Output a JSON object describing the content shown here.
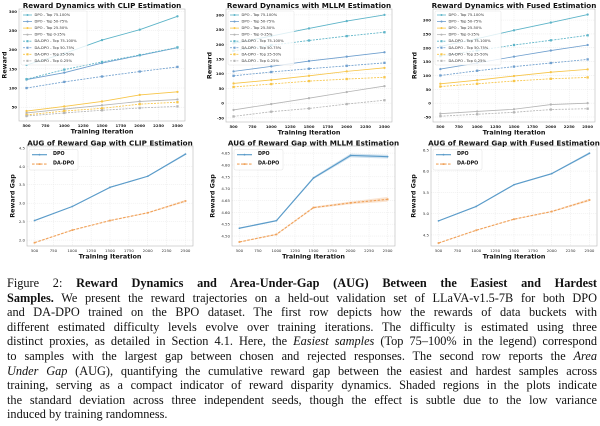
{
  "figure": {
    "caption": {
      "lines": [
        [
          "Figure 2: ",
          "Reward Dynamics and Area-Under-Gap (AUG) Between the Easiest and Hardest"
        ],
        [
          "Samples.",
          " We present the reward trajectories on a held-out validation set of LLaVA-v1.5-7B for both DPO"
        ],
        [
          "and DA-DPO trained on the BPO dataset. The first row depicts how the rewards of data buckets with"
        ],
        [
          "different estimated difficulty levels evolve over training iterations. The difficulty is estimated using three"
        ],
        [
          "distinct proxies, as detailed in Section 4.1. Here, the ",
          "Easiest samples",
          " (Top 75–100% in the legend) correspond"
        ],
        [
          "to samples with the largest gap between chosen and rejected responses. The second row reports the ",
          "Area"
        ],
        [
          "Under Gap",
          " (AUG), quantifying the cumulative reward gap between the easiest and hardest samples across"
        ],
        [
          "training, serving as a compact indicator of reward disparity dynamics. Shaded regions in the plots indicate"
        ],
        [
          "the standard deviation across three independent seeds, though the effect is subtle due to the low variance"
        ],
        [
          "induced by training randomness."
        ]
      ]
    }
  },
  "chart_data": [
    {
      "type": "line",
      "title": "Reward Dynamics with CLIP Estimation",
      "xlabel": "Training Iteration",
      "ylabel": "Reward",
      "x": [
        500,
        1000,
        1500,
        2000,
        2500
      ],
      "xticks": [
        500,
        750,
        1000,
        1250,
        1500,
        1750,
        2000,
        2250,
        2500
      ],
      "xticklabels": [
        "500",
        "750",
        "1000",
        "1250",
        "1500",
        "1750",
        "2000",
        "2250",
        "2500"
      ],
      "xlim": [
        400,
        2600
      ],
      "yticks": [
        50,
        100,
        150,
        200,
        250,
        300
      ],
      "yticklabels": [
        "50",
        "100",
        "150",
        "200",
        "250",
        "300"
      ],
      "ylim": [
        14,
        306
      ],
      "grid": true,
      "legend": "top-left",
      "series": [
        {
          "name": "DPO - Top 75-100%",
          "color": "#5db4c8",
          "linestyle": "solid",
          "marker": "circle",
          "values": [
            160,
            190,
            225,
            252,
            287
          ]
        },
        {
          "name": "DPO - Top 50-75%",
          "color": "#6f9fce",
          "linestyle": "solid",
          "marker": "circle",
          "values": [
            122,
            140,
            165,
            185,
            205
          ]
        },
        {
          "name": "DPO - Top 25-50%",
          "color": "#f7c548",
          "linestyle": "solid",
          "marker": "circle",
          "values": [
            40,
            52,
            65,
            82,
            90
          ]
        },
        {
          "name": "DPO - Top 0-25%",
          "color": "#b5b5b5",
          "linestyle": "solid",
          "marker": "circle",
          "values": [
            35,
            45,
            55,
            65,
            70
          ]
        },
        {
          "name": "DA-DPO - Top 75-100%",
          "color": "#5db4c8",
          "linestyle": "dashed",
          "marker": "square",
          "values": [
            123,
            148,
            168,
            186,
            206
          ]
        },
        {
          "name": "DA-DPO - Top 50-75%",
          "color": "#6f9fce",
          "linestyle": "dashed",
          "marker": "square",
          "values": [
            100,
            116,
            130,
            143,
            155
          ]
        },
        {
          "name": "DA-DPO - Top 25-50%",
          "color": "#f7c548",
          "linestyle": "dashed",
          "marker": "square",
          "values": [
            30,
            40,
            47,
            58,
            63
          ]
        },
        {
          "name": "DA-DPO - Top 0-25%",
          "color": "#b5b5b5",
          "linestyle": "dashed",
          "marker": "square",
          "values": [
            27,
            35,
            42,
            48,
            52
          ]
        }
      ]
    },
    {
      "type": "line",
      "title": "Reward Dynamics with MLLM Estimation",
      "xlabel": "Training Iteration",
      "ylabel": "Reward",
      "x": [
        500,
        1000,
        1500,
        2000,
        2500
      ],
      "xticks": [
        500,
        750,
        1000,
        1250,
        1500,
        1750,
        2000,
        2250,
        2500
      ],
      "xticklabels": [
        "500",
        "750",
        "1000",
        "1250",
        "1500",
        "1750",
        "2000",
        "2250",
        "2500"
      ],
      "xlim": [
        400,
        2600
      ],
      "yticks": [
        -50,
        0,
        50,
        100,
        150,
        200,
        250,
        300
      ],
      "yticklabels": [
        "-50",
        "0",
        "50",
        "100",
        "150",
        "200",
        "250",
        "300"
      ],
      "ylim": [
        -64,
        320
      ],
      "grid": true,
      "legend": "top-left",
      "series": [
        {
          "name": "DPO - Top 75-100%",
          "color": "#5db4c8",
          "linestyle": "solid",
          "marker": "circle",
          "values": [
            203,
            228,
            254,
            279,
            300
          ]
        },
        {
          "name": "DPO - Top 50-75%",
          "color": "#6f9fce",
          "linestyle": "solid",
          "marker": "circle",
          "values": [
            108,
            125,
            143,
            158,
            173
          ]
        },
        {
          "name": "DPO - Top 25-50%",
          "color": "#f7c548",
          "linestyle": "solid",
          "marker": "circle",
          "values": [
            67,
            79,
            93,
            108,
            120
          ]
        },
        {
          "name": "DPO - Top 0-25%",
          "color": "#b5b5b5",
          "linestyle": "solid",
          "marker": "circle",
          "values": [
            -23,
            -3,
            17,
            38,
            58
          ]
        },
        {
          "name": "DA-DPO - Top 75-100%",
          "color": "#5db4c8",
          "linestyle": "dashed",
          "marker": "square",
          "values": [
            178,
            197,
            213,
            228,
            241
          ]
        },
        {
          "name": "DA-DPO - Top 50-75%",
          "color": "#6f9fce",
          "linestyle": "dashed",
          "marker": "square",
          "values": [
            93,
            106,
            117,
            127,
            137
          ]
        },
        {
          "name": "DA-DPO - Top 25-50%",
          "color": "#f7c548",
          "linestyle": "dashed",
          "marker": "square",
          "values": [
            55,
            65,
            75,
            82,
            88
          ]
        },
        {
          "name": "DA-DPO - Top 0-25%",
          "color": "#b5b5b5",
          "linestyle": "dashed",
          "marker": "square",
          "values": [
            -45,
            -29,
            -18,
            -3,
            10
          ]
        }
      ]
    },
    {
      "type": "line",
      "title": "Reward Dynamics with Fused Estimation",
      "xlabel": "Training Iteration",
      "ylabel": "Reward",
      "x": [
        500,
        1000,
        1500,
        2000,
        2500
      ],
      "xticks": [
        500,
        750,
        1000,
        1250,
        1500,
        1750,
        2000,
        2250,
        2500
      ],
      "xticklabels": [
        "500",
        "750",
        "1000",
        "1250",
        "1500",
        "1750",
        "2000",
        "2250",
        "2500"
      ],
      "xlim": [
        400,
        2600
      ],
      "yticks": [
        -50,
        0,
        50,
        100,
        150,
        200,
        250,
        300
      ],
      "yticklabels": [
        "-50",
        "0",
        "50",
        "100",
        "150",
        "200",
        "250",
        "300"
      ],
      "ylim": [
        -68,
        340
      ],
      "grid": true,
      "legend": "top-left",
      "series": [
        {
          "name": "DPO - Top 75-100%",
          "color": "#5db4c8",
          "linestyle": "solid",
          "marker": "circle",
          "values": [
            205,
            233,
            263,
            291,
            320
          ]
        },
        {
          "name": "DPO - Top 50-75%",
          "color": "#6f9fce",
          "linestyle": "solid",
          "marker": "circle",
          "values": [
            123,
            145,
            168,
            190,
            210
          ]
        },
        {
          "name": "DPO - Top 25-50%",
          "color": "#f7c548",
          "linestyle": "solid",
          "marker": "circle",
          "values": [
            70,
            83,
            98,
            112,
            122
          ]
        },
        {
          "name": "DPO - Top 0-25%",
          "color": "#b5b5b5",
          "linestyle": "solid",
          "marker": "circle",
          "values": [
            -38,
            -30,
            -22,
            -5,
            0
          ]
        },
        {
          "name": "DA-DPO - Top 75-100%",
          "color": "#5db4c8",
          "linestyle": "dashed",
          "marker": "square",
          "values": [
            170,
            190,
            210,
            227,
            245
          ]
        },
        {
          "name": "DA-DPO - Top 50-75%",
          "color": "#6f9fce",
          "linestyle": "dashed",
          "marker": "square",
          "values": [
            100,
            117,
            132,
            145,
            158
          ]
        },
        {
          "name": "DA-DPO - Top 25-50%",
          "color": "#f7c548",
          "linestyle": "dashed",
          "marker": "square",
          "values": [
            60,
            70,
            80,
            88,
            93
          ]
        },
        {
          "name": "DA-DPO - Top 0-25%",
          "color": "#b5b5b5",
          "linestyle": "dashed",
          "marker": "square",
          "values": [
            -47,
            -40,
            -33,
            -23,
            -20
          ]
        }
      ]
    },
    {
      "type": "line",
      "title": "AUG of Reward Gap with CLIP Estimation",
      "xlabel": "Training Iteration",
      "ylabel": "Reward Gap",
      "x": [
        500,
        1000,
        1500,
        2000,
        2500
      ],
      "xticks": [
        500,
        750,
        1000,
        1250,
        1500,
        1750,
        2000,
        2250,
        2500
      ],
      "xticklabels": [
        "500",
        "750",
        "1000",
        "1250",
        "1500",
        "1750",
        "2000",
        "2250",
        "2500"
      ],
      "xlim": [
        400,
        2600
      ],
      "yticks": [
        2.0,
        2.5,
        3.0,
        3.5,
        4.0,
        4.5
      ],
      "yticklabels": [
        "2.0",
        "2.5",
        "3.0",
        "3.5",
        "4.0",
        "4.5"
      ],
      "ylim": [
        1.84,
        4.55
      ],
      "grid": true,
      "legend": "top-left",
      "series": [
        {
          "name": "DPO",
          "color": "#5a9bc9",
          "linestyle": "solid",
          "marker": "circle",
          "values": [
            2.53,
            2.91,
            3.43,
            3.73,
            4.33
          ],
          "std": [
            0.01,
            0.01,
            0.015,
            0.015,
            0.03
          ]
        },
        {
          "name": "DA-DPO",
          "color": "#f0a35c",
          "linestyle": "dashed",
          "marker": "square",
          "values": [
            1.93,
            2.27,
            2.53,
            2.74,
            3.06
          ],
          "std": [
            0.01,
            0.01,
            0.01,
            0.015,
            0.03
          ]
        }
      ]
    },
    {
      "type": "line",
      "title": "AUG of Reward Gap with MLLM Estimation",
      "xlabel": "Training Iteration",
      "ylabel": "Reward Gap",
      "x": [
        500,
        1000,
        1500,
        2000,
        2500
      ],
      "xticks": [
        500,
        750,
        1000,
        1250,
        1500,
        1750,
        2000,
        2250,
        2500
      ],
      "xticklabels": [
        "500",
        "750",
        "1000",
        "1250",
        "1500",
        "1750",
        "2000",
        "2250",
        "2500"
      ],
      "xlim": [
        400,
        2600
      ],
      "yticks": [
        4.5,
        4.55,
        4.6,
        4.65,
        4.7,
        4.75,
        4.8,
        4.85
      ],
      "yticklabels": [
        "4.50",
        "4.55",
        "4.60",
        "4.65",
        "4.70",
        "4.75",
        "4.80",
        "4.85"
      ],
      "ylim": [
        4.458,
        4.88
      ],
      "grid": true,
      "legend": "top-left",
      "series": [
        {
          "name": "DPO",
          "color": "#5a9bc9",
          "linestyle": "solid",
          "marker": "circle",
          "values": [
            4.533,
            4.565,
            4.745,
            4.84,
            4.835
          ],
          "std": [
            0.003,
            0.003,
            0.005,
            0.008,
            0.008
          ]
        },
        {
          "name": "DA-DPO",
          "color": "#f0a35c",
          "linestyle": "dashed",
          "marker": "square",
          "values": [
            4.475,
            4.507,
            4.62,
            4.64,
            4.655
          ],
          "std": [
            0.002,
            0.003,
            0.004,
            0.006,
            0.01
          ]
        }
      ]
    },
    {
      "type": "line",
      "title": "AUG of Reward Gap with Fused Estimation",
      "xlabel": "Training Iteration",
      "ylabel": "Reward Gap",
      "x": [
        500,
        1000,
        1500,
        2000,
        2500
      ],
      "xticks": [
        500,
        750,
        1000,
        1250,
        1500,
        1750,
        2000,
        2250,
        2500
      ],
      "xticklabels": [
        "500",
        "750",
        "1000",
        "1250",
        "1500",
        "1750",
        "2000",
        "2250",
        "2500"
      ],
      "xlim": [
        400,
        2600
      ],
      "yticks": [
        4.5,
        5.0,
        5.5,
        6.0,
        6.5
      ],
      "yticklabels": [
        "4.5",
        "5.0",
        "5.5",
        "6.0",
        "6.5"
      ],
      "ylim": [
        4.24,
        6.59
      ],
      "grid": true,
      "legend": "top-left",
      "series": [
        {
          "name": "DPO",
          "color": "#5a9bc9",
          "linestyle": "solid",
          "marker": "circle",
          "values": [
            4.83,
            5.17,
            5.68,
            5.94,
            6.42
          ],
          "std": [
            0.01,
            0.01,
            0.015,
            0.015,
            0.03
          ]
        },
        {
          "name": "DA-DPO",
          "color": "#f0a35c",
          "linestyle": "dashed",
          "marker": "square",
          "values": [
            4.31,
            4.61,
            4.87,
            5.05,
            5.32
          ],
          "std": [
            0.01,
            0.01,
            0.01,
            0.015,
            0.03
          ]
        }
      ]
    }
  ]
}
